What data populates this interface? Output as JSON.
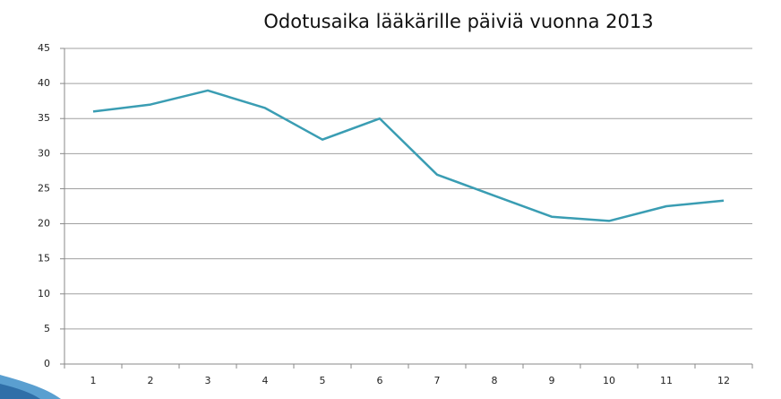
{
  "chart_data": {
    "type": "line",
    "title": "Odotusaika lääkärille päiviä vuonna 2013",
    "categories": [
      "1",
      "2",
      "3",
      "4",
      "5",
      "6",
      "7",
      "8",
      "9",
      "10",
      "11",
      "12"
    ],
    "series": [
      {
        "name": null,
        "color": "#3a9db3",
        "values": [
          36,
          37,
          39,
          36.5,
          32,
          35,
          27,
          24,
          21,
          20.4,
          22.5,
          23.3
        ]
      }
    ],
    "ylim": [
      0,
      45
    ],
    "yticks": [
      0,
      5,
      10,
      15,
      20,
      25,
      30,
      35,
      40,
      45
    ],
    "grid": true
  }
}
